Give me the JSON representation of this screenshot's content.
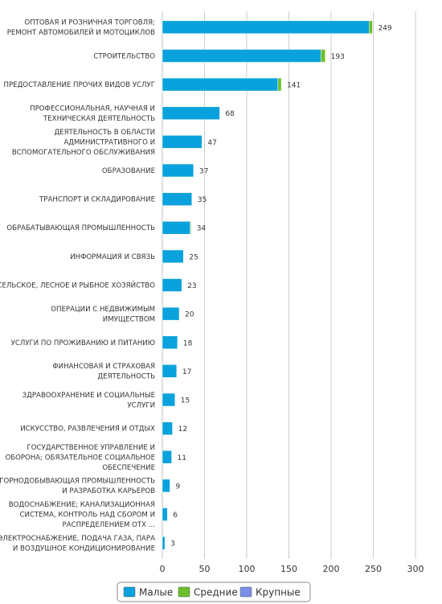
{
  "chart_data": {
    "type": "bar",
    "orientation": "horizontal",
    "stacked": true,
    "categories": [
      "ОПТОВАЯ И РОЗНИЧНАЯ ТОРГОВЛЯ; РЕМОНТ АВТОМОБИЛЕЙ И МОТОЦИКЛОВ",
      "СТРОИТЕЛЬСТВО",
      "ПРЕДОСТАВЛЕНИЕ ПРОЧИХ ВИДОВ УСЛУГ",
      "ПРОФЕССИОНАЛЬНАЯ, НАУЧНАЯ И ТЕХНИЧЕСКАЯ ДЕЯТЕЛЬНОСТЬ",
      "ДЕЯТЕЛЬНОСТЬ В ОБЛАСТИ АДМИНИСТРАТИВНОГО И ВСПОМОГАТЕЛЬНОГО ОБСЛУЖИВАНИЯ",
      "ОБРАЗОВАНИЕ",
      "ТРАНСПОРТ И СКЛАДИРОВАНИЕ",
      "ОБРАБАТЫВАЮЩАЯ ПРОМЫШЛЕННОСТЬ",
      "ИНФОРМАЦИЯ И СВЯЗЬ",
      "СЕЛЬСКОЕ, ЛЕСНОЕ И РЫБНОЕ ХОЗЯЙСТВО",
      "ОПЕРАЦИИ С НЕДВИЖИМЫМ ИМУЩЕСТВОМ",
      "УСЛУГИ ПО ПРОЖИВАНИЮ И ПИТАНИЮ",
      "ФИНАНСОВАЯ И СТРАХОВАЯ ДЕЯТЕЛЬНОСТЬ",
      "ЗДРАВООХРАНЕНИЕ И СОЦИАЛЬНЫЕ УСЛУГИ",
      "ИСКУССТВО, РАЗВЛЕЧЕНИЯ И ОТДЫХ",
      "ГОСУДАРСТВЕННОЕ УПРАВЛЕНИЕ И ОБОРОНА; ОБЯЗАТЕЛЬНОЕ СОЦИАЛЬНОЕ ОБЕСПЕЧЕНИЕ",
      "ГОРНОДОБЫВАЮЩАЯ ПРОМЫШЛЕННОСТЬ И РАЗРАБОТКА КАРЬЕРОВ",
      "ВОДОСНАБЖЕНИЕ; КАНАЛИЗАЦИОННАЯ СИСТЕМА, КОНТРОЛЬ НАД СБОРОМ И РАСПРЕДЕЛЕНИЕМ ОТХ ...",
      "ЭЛЕКТРОСНАБЖЕНИЕ, ПОДАЧА ГАЗА, ПАРА И ВОЗДУШНОЕ КОНДИЦИОНИРОВАНИЕ"
    ],
    "category_lines": [
      [
        "ОПТОВАЯ И РОЗНИЧНАЯ ТОРГОВЛЯ;",
        "РЕМОНТ АВТОМОБИЛЕЙ И МОТОЦИКЛОВ"
      ],
      [
        "СТРОИТЕЛЬСТВО"
      ],
      [
        "ПРЕДОСТАВЛЕНИЕ ПРОЧИХ ВИДОВ УСЛУГ"
      ],
      [
        "ПРОФЕССИОНАЛЬНАЯ, НАУЧНАЯ И",
        "ТЕХНИЧЕСКАЯ ДЕЯТЕЛЬНОСТЬ"
      ],
      [
        "ДЕЯТЕЛЬНОСТЬ В ОБЛАСТИ",
        "АДМИНИСТРАТИВНОГО И",
        "ВСПОМОГАТЕЛЬНОГО ОБСЛУЖИВАНИЯ"
      ],
      [
        "ОБРАЗОВАНИЕ"
      ],
      [
        "ТРАНСПОРТ И СКЛАДИРОВАНИЕ"
      ],
      [
        "ОБРАБАТЫВАЮЩАЯ ПРОМЫШЛЕННОСТЬ"
      ],
      [
        "ИНФОРМАЦИЯ И СВЯЗЬ"
      ],
      [
        "СЕЛЬСКОЕ, ЛЕСНОЕ И РЫБНОЕ ХОЗЯЙСТВО"
      ],
      [
        "ОПЕРАЦИИ С НЕДВИЖИМЫМ",
        "ИМУЩЕСТВОМ"
      ],
      [
        "УСЛУГИ ПО ПРОЖИВАНИЮ И ПИТАНИЮ"
      ],
      [
        "ФИНАНСОВАЯ И СТРАХОВАЯ",
        "ДЕЯТЕЛЬНОСТЬ"
      ],
      [
        "ЗДРАВООХРАНЕНИЕ И СОЦИАЛЬНЫЕ",
        "УСЛУГИ"
      ],
      [
        "ИСКУССТВО, РАЗВЛЕЧЕНИЯ И ОТДЫХ"
      ],
      [
        "ГОСУДАРСТВЕННОЕ УПРАВЛЕНИЕ И",
        "ОБОРОНА; ОБЯЗАТЕЛЬНОЕ СОЦИАЛЬНОЕ",
        "ОБЕСПЕЧЕНИЕ"
      ],
      [
        "ГОРНОДОБЫВАЮЩАЯ ПРОМЫШЛЕННОСТЬ",
        "И РАЗРАБОТКА КАРЬЕРОВ"
      ],
      [
        "ВОДОСНАБЖЕНИЕ; КАНАЛИЗАЦИОННАЯ",
        "СИСТЕМА, КОНТРОЛЬ НАД СБОРОМ И",
        "РАСПРЕДЕЛЕНИЕМ ОТХ ..."
      ],
      [
        "ЭЛЕКТРОСНАБЖЕНИЕ, ПОДАЧА ГАЗА, ПАРА",
        "И ВОЗДУШНОЕ КОНДИЦИОНИРОВАНИЕ"
      ]
    ],
    "series": [
      {
        "name": "Малые",
        "color": "#0aa2dc",
        "values": [
          245,
          188,
          137,
          68,
          47,
          37,
          35,
          33,
          25,
          23,
          20,
          18,
          17,
          15,
          12,
          11,
          9,
          6,
          3
        ]
      },
      {
        "name": "Средние",
        "color": "#6cbf2a",
        "values": [
          4,
          5,
          4,
          0,
          0,
          0,
          0,
          1,
          0,
          0,
          0,
          0,
          0,
          0,
          0,
          0,
          0,
          0,
          0
        ]
      },
      {
        "name": "Крупные",
        "color": "#7b8ee8",
        "values": [
          0,
          0,
          0,
          0,
          0,
          0,
          0,
          0,
          0,
          0,
          0,
          0,
          0,
          0,
          0,
          0,
          0,
          0,
          0
        ]
      }
    ],
    "totals": [
      249,
      193,
      141,
      68,
      47,
      37,
      35,
      34,
      25,
      23,
      20,
      18,
      17,
      15,
      12,
      11,
      9,
      6,
      3
    ],
    "xlim": [
      0,
      300
    ],
    "x_ticks": [
      0,
      50,
      100,
      150,
      200,
      250,
      300
    ],
    "grid": true,
    "legend_position": "bottom-center",
    "title": "",
    "xlabel": "",
    "ylabel": ""
  }
}
